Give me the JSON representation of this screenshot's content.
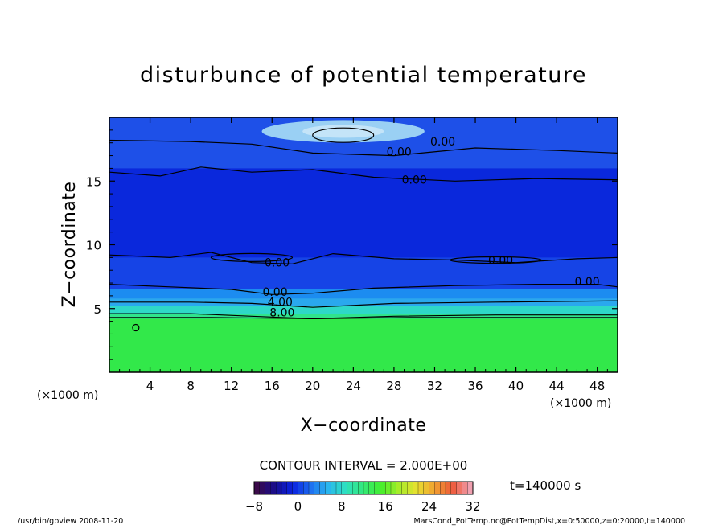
{
  "chart_data": {
    "type": "heatmap",
    "title": "disturbunce of potential temperature",
    "xlabel": "X−coordinate",
    "ylabel": "Z−coordinate",
    "x_unit_left": "(×1000 m)",
    "x_unit_right": "(×1000 m)",
    "xlim": [
      0,
      50
    ],
    "ylim": [
      0,
      20
    ],
    "x_ticks": [
      4,
      8,
      12,
      16,
      20,
      24,
      28,
      32,
      36,
      40,
      44,
      48
    ],
    "y_ticks": [
      5,
      10,
      15
    ],
    "contour_interval": "CONTOUR INTERVAL = 2.000E+00",
    "contour_labels": [
      {
        "text": "0.00",
        "x": 28.5,
        "z": 17.0
      },
      {
        "text": "0.00",
        "x": 32.8,
        "z": 17.8
      },
      {
        "text": "0.00",
        "x": 30.0,
        "z": 14.8
      },
      {
        "text": "0.00",
        "x": 16.5,
        "z": 8.3
      },
      {
        "text": "0.00",
        "x": 38.5,
        "z": 8.5
      },
      {
        "text": "0.00",
        "x": 47.0,
        "z": 6.8
      },
      {
        "text": "0.00",
        "x": 16.3,
        "z": 6.0
      },
      {
        "text": "4.00",
        "x": 16.8,
        "z": 5.2
      },
      {
        "text": "8.00",
        "x": 17.0,
        "z": 4.4
      }
    ],
    "colorbar": {
      "min": -8,
      "max": 32,
      "ticks": [
        "−8",
        "0",
        "8",
        "16",
        "24",
        "32"
      ],
      "colors": [
        "#3a0a4a",
        "#1a0d8c",
        "#0a22e0",
        "#1e6cf0",
        "#29b6ee",
        "#2ee0c0",
        "#34e87a",
        "#44ee2c",
        "#a6ec2a",
        "#e8e030",
        "#f0a030",
        "#ee5a3a",
        "#f0a0b0"
      ]
    },
    "field_colors": {
      "top_band": "#1e50e8",
      "mid": "#0a28dc",
      "stable_layer": "#2aa8ee",
      "lower": "#32e84a"
    },
    "time_label": "t=140000 s"
  },
  "footer": {
    "left": "/usr/bin/gpview   2008-11-20",
    "right": "MarsCond_PotTemp.nc@PotTempDist,x=0:50000,z=0:20000,t=140000"
  }
}
